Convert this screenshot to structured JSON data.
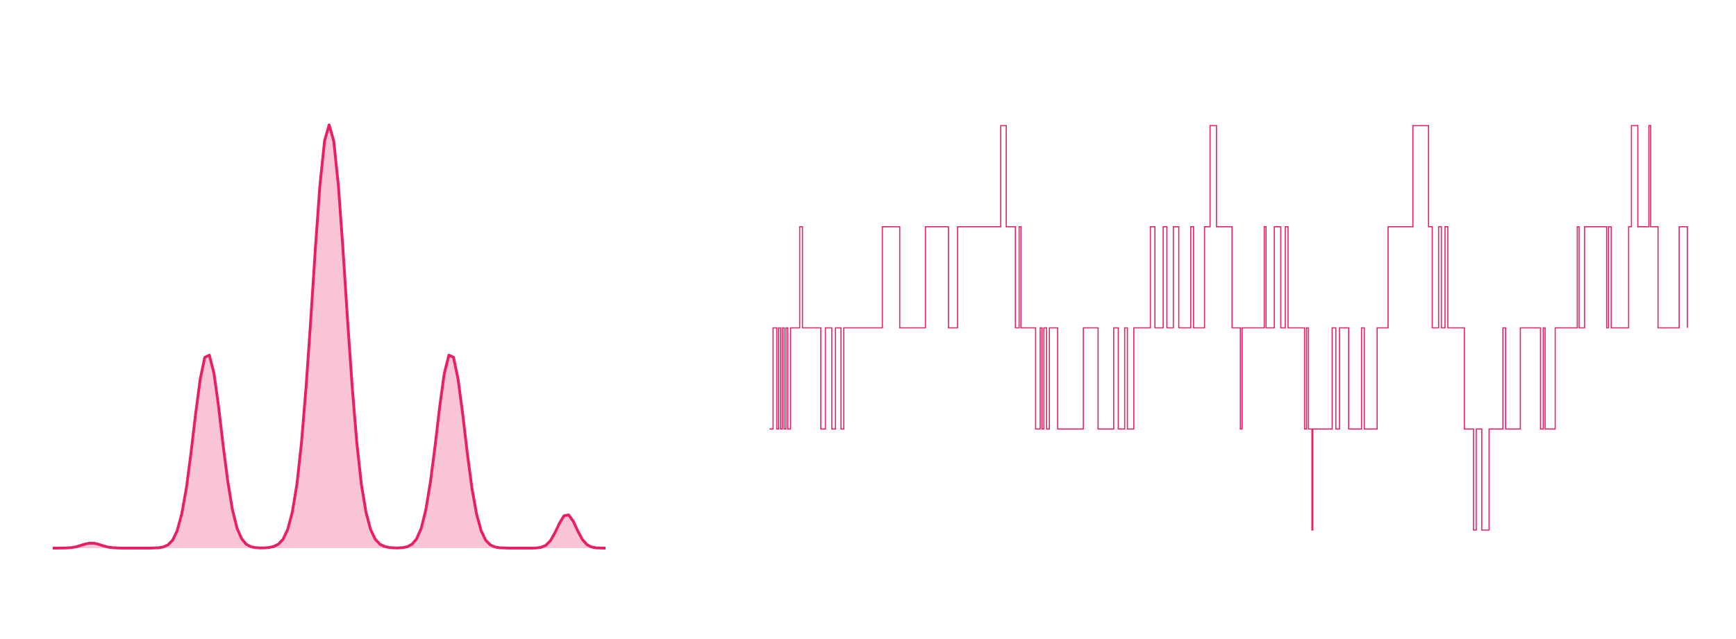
{
  "colors": {
    "background": "#ffffff",
    "accent": "#e91e63",
    "fill": "#f8c4d6"
  },
  "chart_data": [
    {
      "type": "area",
      "title": "",
      "xlabel": "",
      "ylabel": "",
      "grid": false,
      "legend": "none",
      "xlim": [
        0,
        100
      ],
      "ylim": [
        0,
        1
      ],
      "series": [
        {
          "components": [
            {
              "mean": 7,
              "amplitude": 0.012,
              "sigma": 1.7
            },
            {
              "mean": 28,
              "amplitude": 0.46,
              "sigma": 2.5
            },
            {
              "mean": 50,
              "amplitude": 1.0,
              "sigma": 3.0
            },
            {
              "mean": 72,
              "amplitude": 0.46,
              "sigma": 2.5
            },
            {
              "mean": 93,
              "amplitude": 0.08,
              "sigma": 1.7
            }
          ]
        }
      ]
    },
    {
      "type": "line",
      "title": "",
      "xlabel": "",
      "ylabel": "",
      "grid": false,
      "legend": "none",
      "step": true,
      "ylim": [
        -2,
        2
      ],
      "n_points": 1000,
      "levels": [
        -2,
        -1,
        0,
        1,
        2
      ],
      "series": [
        {
          "steps": [
            [
              0,
              -1
            ],
            [
              4,
              0
            ],
            [
              8,
              -1
            ],
            [
              10,
              0
            ],
            [
              12,
              -1
            ],
            [
              14,
              0
            ],
            [
              16,
              -1
            ],
            [
              18,
              0
            ],
            [
              20,
              -1
            ],
            [
              23,
              0
            ],
            [
              33,
              1
            ],
            [
              36,
              0
            ],
            [
              56,
              -1
            ],
            [
              61,
              0
            ],
            [
              68,
              -1
            ],
            [
              72,
              0
            ],
            [
              78,
              -1
            ],
            [
              81,
              0
            ],
            [
              123,
              1
            ],
            [
              142,
              0
            ],
            [
              170,
              1
            ],
            [
              195,
              0
            ],
            [
              205,
              1
            ],
            [
              252,
              2
            ],
            [
              258,
              1
            ],
            [
              268,
              0
            ],
            [
              272,
              1
            ],
            [
              274,
              0
            ],
            [
              290,
              -1
            ],
            [
              295,
              0
            ],
            [
              297,
              -1
            ],
            [
              299,
              0
            ],
            [
              302,
              -1
            ],
            [
              305,
              0
            ],
            [
              314,
              -1
            ],
            [
              342,
              0
            ],
            [
              358,
              -1
            ],
            [
              375,
              0
            ],
            [
              380,
              -1
            ],
            [
              387,
              0
            ],
            [
              390,
              -1
            ],
            [
              397,
              0
            ],
            [
              415,
              1
            ],
            [
              420,
              0
            ],
            [
              429,
              1
            ],
            [
              433,
              0
            ],
            [
              440,
              1
            ],
            [
              446,
              0
            ],
            [
              459,
              1
            ],
            [
              462,
              0
            ],
            [
              474,
              1
            ],
            [
              480,
              2
            ],
            [
              487,
              1
            ],
            [
              504,
              0
            ],
            [
              513,
              -1
            ],
            [
              515,
              0
            ],
            [
              539,
              1
            ],
            [
              541,
              0
            ],
            [
              550,
              1
            ],
            [
              557,
              0
            ],
            [
              562,
              1
            ],
            [
              565,
              0
            ],
            [
              565,
              0
            ],
            [
              583,
              -1
            ],
            [
              585,
              0
            ],
            [
              587,
              -1
            ],
            [
              588,
              -1
            ],
            [
              591,
              -2
            ],
            [
              592,
              -1
            ],
            [
              613,
              0
            ],
            [
              617,
              -1
            ],
            [
              621,
              0
            ],
            [
              631,
              -1
            ],
            [
              645,
              0
            ],
            [
              648,
              -1
            ],
            [
              662,
              0
            ],
            [
              674,
              1
            ],
            [
              683,
              1
            ],
            [
              701,
              2
            ],
            [
              718,
              1
            ],
            [
              722,
              0
            ],
            [
              729,
              1
            ],
            [
              732,
              0
            ],
            [
              736,
              1
            ],
            [
              739,
              0
            ],
            [
              745,
              0
            ],
            [
              757,
              -1
            ],
            [
              767,
              -2
            ],
            [
              770,
              -1
            ],
            [
              774,
              -1
            ],
            [
              776,
              -2
            ],
            [
              784,
              -1
            ],
            [
              799,
              0
            ],
            [
              802,
              -1
            ],
            [
              818,
              0
            ],
            [
              828,
              0
            ],
            [
              840,
              -1
            ],
            [
              843,
              0
            ],
            [
              845,
              -1
            ],
            [
              850,
              -1
            ],
            [
              856,
              0
            ],
            [
              880,
              1
            ],
            [
              882,
              0
            ],
            [
              888,
              1
            ],
            [
              912,
              0
            ],
            [
              914,
              1
            ],
            [
              917,
              0
            ],
            [
              936,
              1
            ],
            [
              939,
              2
            ],
            [
              944,
              2
            ],
            [
              946,
              1
            ],
            [
              958,
              2
            ],
            [
              960,
              1
            ],
            [
              968,
              0
            ],
            [
              991,
              1
            ],
            [
              1000,
              0
            ]
          ]
        }
      ]
    }
  ]
}
